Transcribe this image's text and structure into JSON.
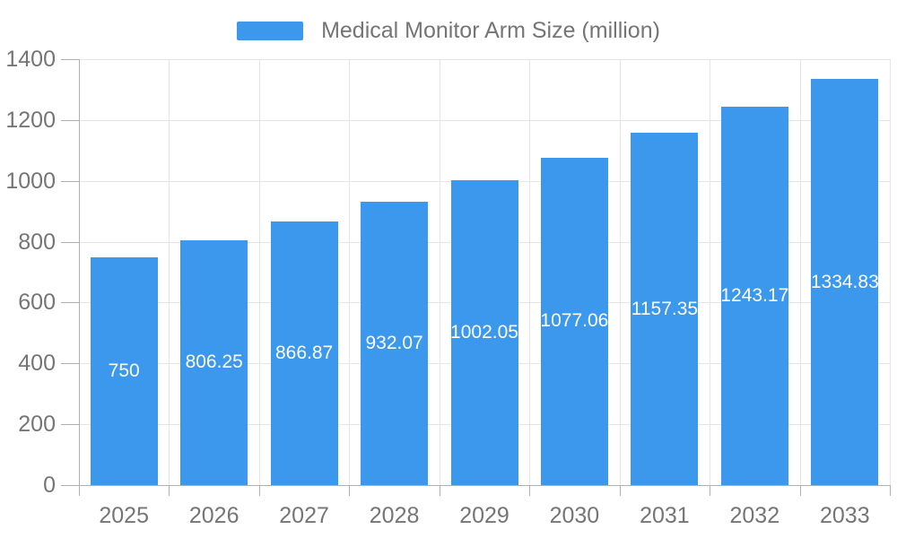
{
  "chart_data": {
    "type": "bar",
    "title": "Medical Monitor Arm Size (million)",
    "categories": [
      "2025",
      "2026",
      "2027",
      "2028",
      "2029",
      "2030",
      "2031",
      "2032",
      "2033"
    ],
    "values": [
      750,
      806.25,
      866.87,
      932.07,
      1002.05,
      1077.06,
      1157.35,
      1243.17,
      1334.83
    ],
    "value_labels": [
      "750",
      "806.25",
      "866.87",
      "932.07",
      "1002.05",
      "1077.06",
      "1157.35",
      "1243.17",
      "1334.83"
    ],
    "xlabel": "",
    "ylabel": "",
    "ylim": [
      0,
      1400
    ],
    "y_ticks": [
      0,
      200,
      400,
      600,
      800,
      1000,
      1200,
      1400
    ],
    "y_tick_labels": [
      "0",
      "200",
      "400",
      "600",
      "800",
      "1000",
      "1200",
      "1400"
    ],
    "grid": true,
    "legend_position": "top",
    "colors": {
      "bar": "#3B98EC",
      "bar_label": "#FFFFFF",
      "axis_text": "#757575",
      "legend_text": "#757575",
      "grid_line": "#E6E6E6",
      "axis_line": "#B0B0B0",
      "background": "#FFFFFF"
    }
  }
}
